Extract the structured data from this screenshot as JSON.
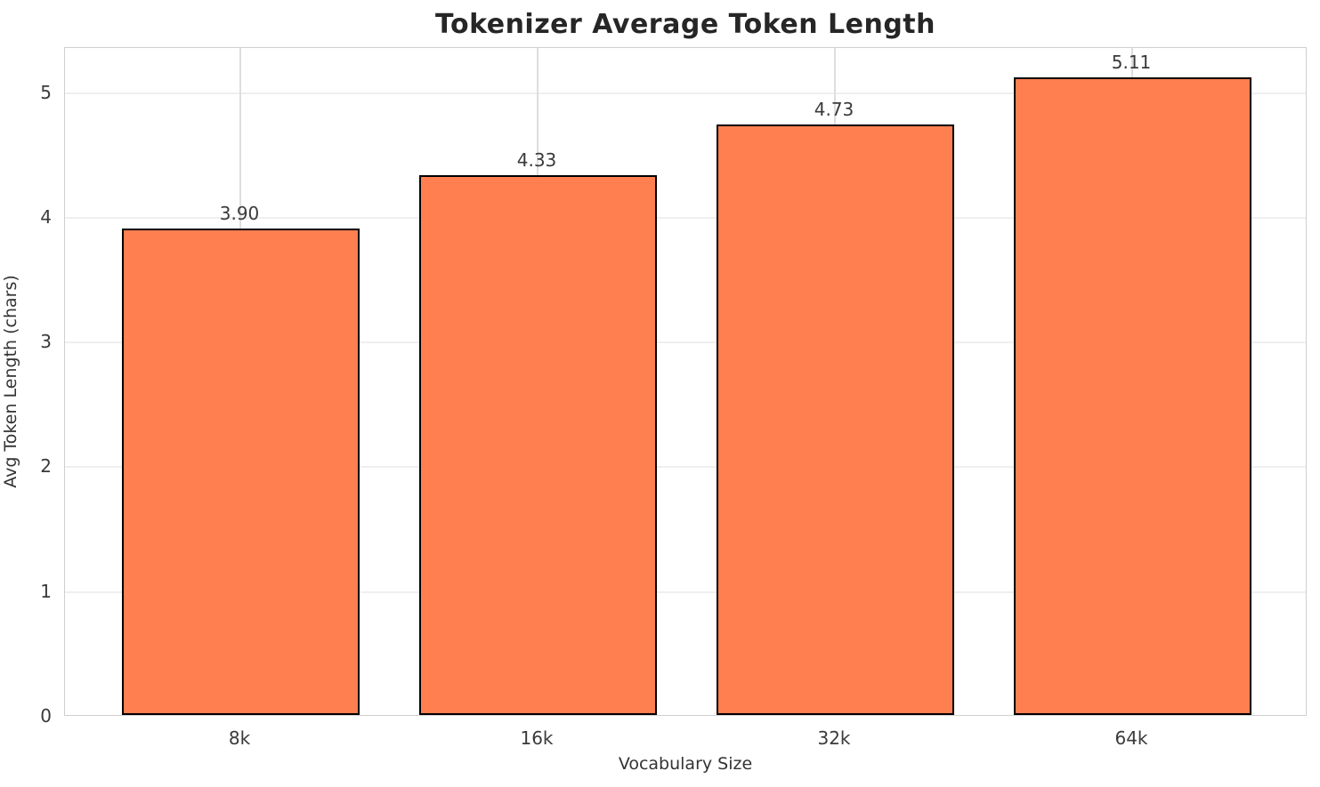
{
  "chart_data": {
    "type": "bar",
    "title": "Tokenizer Average Token Length",
    "categories": [
      "8k",
      "16k",
      "32k",
      "64k"
    ],
    "values": [
      3.9,
      4.33,
      4.73,
      5.11
    ],
    "value_labels": [
      "3.90",
      "4.33",
      "4.73",
      "5.11"
    ],
    "xlabel": "Vocabulary Size",
    "ylabel": "Avg Token Length (chars)",
    "yticks": [
      0,
      1,
      2,
      3,
      4,
      5
    ],
    "ylim": [
      0,
      5.36
    ],
    "grid": "on",
    "legend": "none",
    "colors": {
      "bar_fill": "#ff7f50",
      "bar_edge": "#000000",
      "grid_h": "#efefef",
      "grid_v": "#dedede",
      "spine": "#cfcfcf",
      "title_text": "#262626",
      "tick_text": "#3a3a3a",
      "axis_label_text": "#333333",
      "background": "#ffffff"
    }
  }
}
